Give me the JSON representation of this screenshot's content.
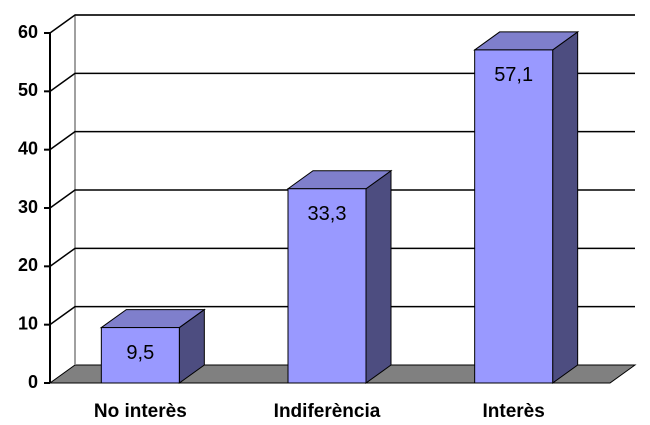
{
  "chart_data": {
    "type": "bar3d",
    "categories": [
      "No interès",
      "Indiferència",
      "Interès"
    ],
    "values": [
      9.5,
      33.3,
      57.1
    ],
    "value_labels": [
      "9,5",
      "33,3",
      "57,1"
    ],
    "color": "#9999ff",
    "ylim": [
      0,
      60
    ],
    "yticks": [
      0,
      10,
      20,
      30,
      40,
      50,
      60
    ],
    "grid": true
  }
}
